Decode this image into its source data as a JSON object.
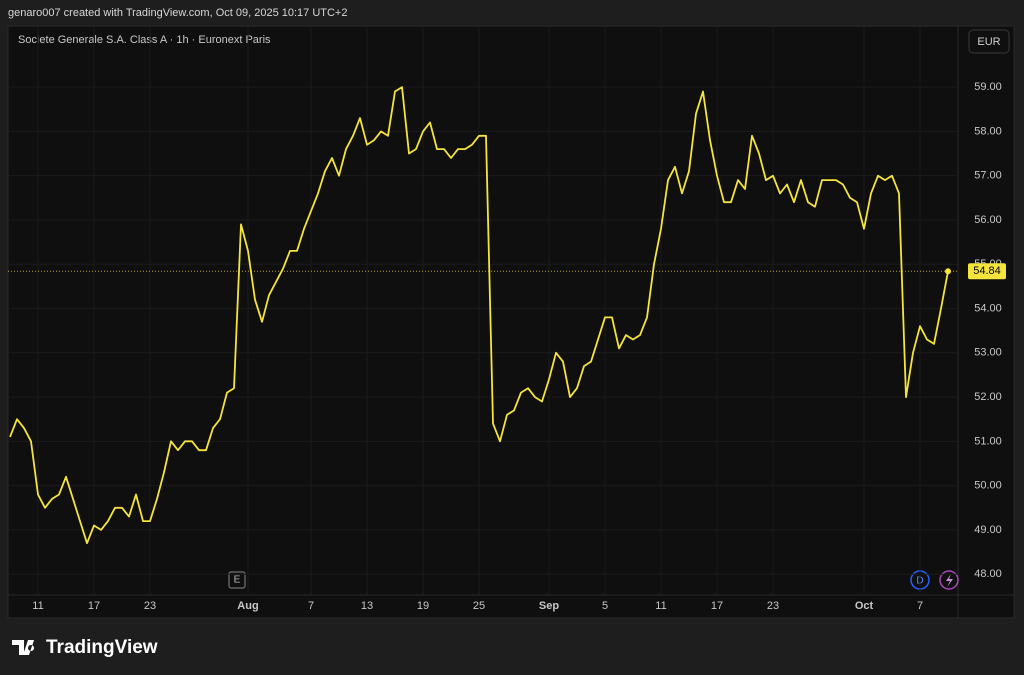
{
  "header": "genaro007 created with TradingView.com, Oct 09, 2025 10:17 UTC+2",
  "brand": "TradingView",
  "currency": "EUR",
  "event_markers": [
    "E",
    "D"
  ],
  "chart_data": {
    "type": "line",
    "title": "Societe Generale S.A. Class A · 1h · Euronext Paris",
    "color": "#f5e43c",
    "grid": true,
    "ylim": [
      47.53,
      60.38
    ],
    "yticks": [
      {
        "value": 48,
        "label": "48.00"
      },
      {
        "value": 49,
        "label": "49.00"
      },
      {
        "value": 50,
        "label": "50.00"
      },
      {
        "value": 51,
        "label": "51.00"
      },
      {
        "value": 52,
        "label": "52.00"
      },
      {
        "value": 53,
        "label": "53.00"
      },
      {
        "value": 54,
        "label": "54.00"
      },
      {
        "value": 55,
        "label": "55.00"
      },
      {
        "value": 56,
        "label": "56.00"
      },
      {
        "value": 57,
        "label": "57.00"
      },
      {
        "value": 58,
        "label": "58.00"
      },
      {
        "value": 59,
        "label": "59.00"
      }
    ],
    "categories": [
      null,
      null,
      null,
      null,
      "11",
      null,
      null,
      null,
      null,
      null,
      null,
      null,
      "17",
      null,
      null,
      null,
      null,
      null,
      null,
      null,
      "23",
      null,
      null,
      null,
      null,
      null,
      null,
      null,
      null,
      null,
      null,
      null,
      null,
      null,
      "Aug",
      null,
      null,
      null,
      null,
      null,
      null,
      null,
      null,
      "7",
      null,
      null,
      null,
      null,
      null,
      null,
      null,
      "13",
      null,
      null,
      null,
      null,
      null,
      null,
      null,
      "19",
      null,
      null,
      null,
      null,
      null,
      null,
      null,
      "25",
      null,
      null,
      null,
      null,
      null,
      null,
      null,
      null,
      null,
      "Sep",
      null,
      null,
      null,
      null,
      null,
      null,
      null,
      "5",
      null,
      null,
      null,
      null,
      null,
      null,
      null,
      "11",
      null,
      null,
      null,
      null,
      null,
      null,
      null,
      "17",
      null,
      null,
      null,
      null,
      null,
      null,
      null,
      "23",
      null,
      null,
      null,
      null,
      null,
      null,
      null,
      null,
      null,
      null,
      null,
      null,
      "Oct",
      null,
      null,
      null,
      null,
      null,
      null,
      null,
      "7",
      null,
      null,
      null,
      null
    ],
    "values": [
      51.1,
      51.5,
      51.3,
      51.0,
      49.8,
      49.5,
      49.7,
      49.8,
      50.2,
      49.7,
      49.2,
      48.7,
      49.1,
      49.0,
      49.2,
      49.5,
      49.5,
      49.3,
      49.8,
      49.2,
      49.2,
      49.7,
      50.3,
      51.0,
      50.8,
      51.0,
      51.0,
      50.8,
      50.8,
      51.3,
      51.5,
      52.1,
      52.2,
      55.9,
      55.3,
      54.2,
      53.7,
      54.3,
      54.6,
      54.9,
      55.3,
      55.3,
      55.8,
      56.2,
      56.6,
      57.1,
      57.4,
      57.0,
      57.6,
      57.9,
      58.3,
      57.7,
      57.8,
      58.0,
      57.9,
      58.9,
      59.0,
      57.5,
      57.6,
      58.0,
      58.2,
      57.6,
      57.6,
      57.4,
      57.6,
      57.6,
      57.7,
      57.9,
      57.9,
      51.4,
      51.0,
      51.6,
      51.7,
      52.1,
      52.2,
      52.0,
      51.9,
      52.4,
      53.0,
      52.8,
      52.0,
      52.2,
      52.7,
      52.8,
      53.3,
      53.8,
      53.8,
      53.1,
      53.4,
      53.3,
      53.4,
      53.8,
      55.0,
      55.8,
      56.9,
      57.2,
      56.6,
      57.1,
      58.4,
      58.9,
      57.8,
      57.0,
      56.4,
      56.4,
      56.9,
      56.7,
      57.9,
      57.5,
      56.9,
      57.0,
      56.6,
      56.8,
      56.4,
      56.9,
      56.4,
      56.3,
      56.9,
      56.9,
      56.9,
      56.8,
      56.5,
      56.4,
      55.8,
      56.6,
      57.0,
      56.9,
      57.0,
      56.6,
      52.0,
      53.0,
      53.6,
      53.3,
      53.2,
      54.0,
      54.84
    ]
  }
}
